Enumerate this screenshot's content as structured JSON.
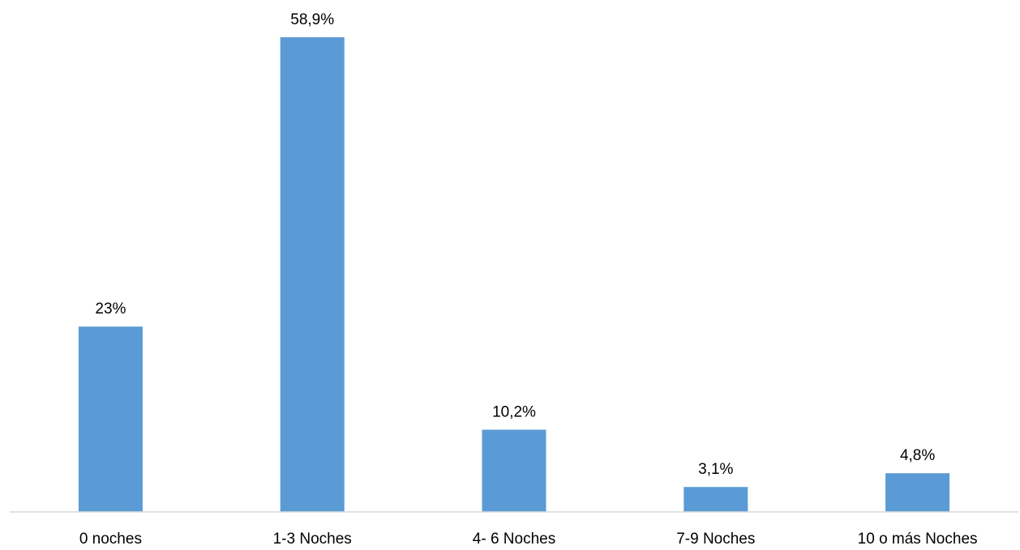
{
  "chart_data": {
    "type": "bar",
    "title": "",
    "xlabel": "",
    "ylabel": "",
    "categories": [
      "0 noches",
      "1-3 Noches",
      "4- 6 Noches",
      "7-9 Noches",
      "10 o más Noches"
    ],
    "values": [
      23,
      58.9,
      10.2,
      3.1,
      4.8
    ],
    "value_labels": [
      "23%",
      "58,9%",
      "10,2%",
      "3,1%",
      "4,8%"
    ],
    "unit": "%",
    "ylim": [
      0,
      60
    ],
    "grid": false,
    "legend": "none",
    "bar_color": "#5b9bd5",
    "axis_color": "#d9d9d9"
  }
}
